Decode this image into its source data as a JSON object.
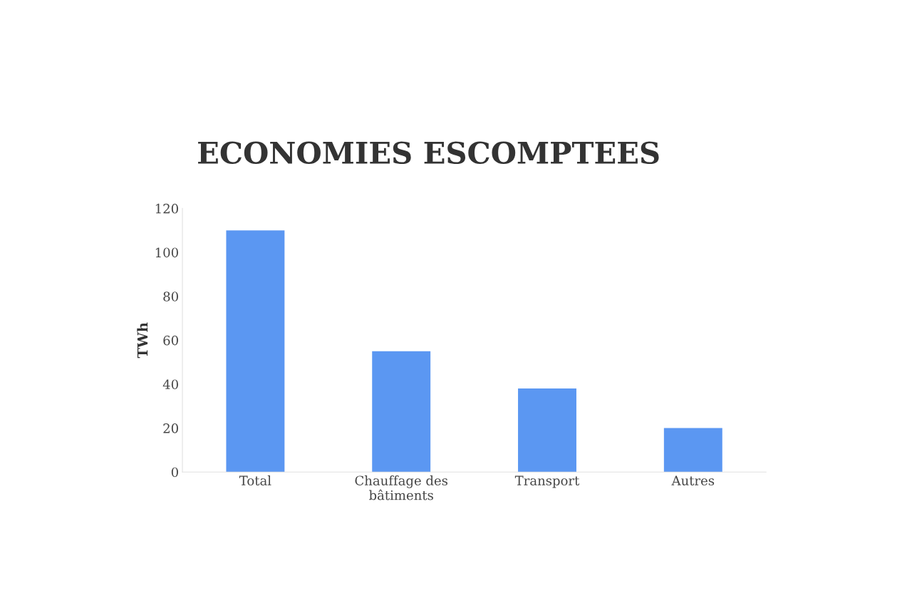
{
  "chart_data": {
    "type": "bar",
    "title": "ECONOMIES ESCOMPTEES",
    "ylabel": "TWh",
    "categories": [
      "Total",
      "Chauffage des\nbâtiments",
      "Transport",
      "Autres"
    ],
    "values": [
      110,
      55,
      38,
      20
    ],
    "color": "#5b97f2",
    "ylim": [
      0,
      120
    ],
    "yticks": [
      0,
      20,
      40,
      60,
      80,
      100,
      120
    ],
    "grid": false,
    "legend": false
  }
}
